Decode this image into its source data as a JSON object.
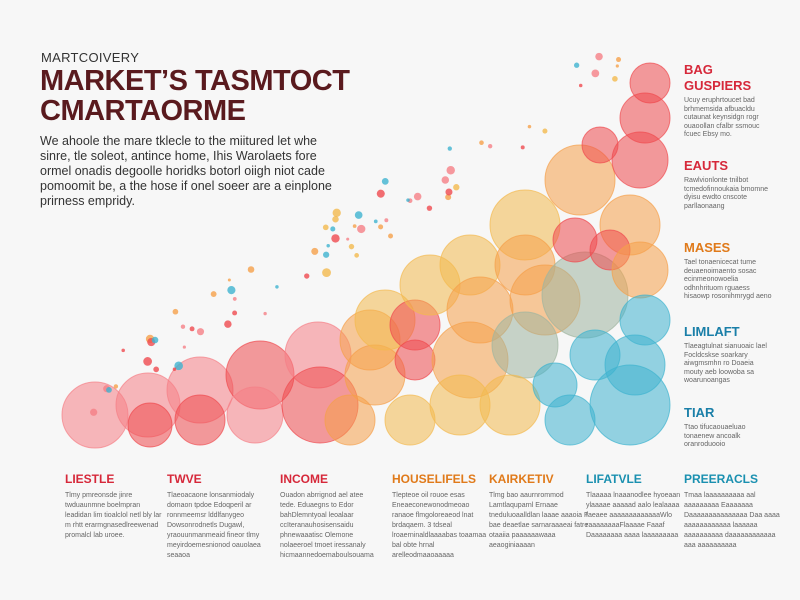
{
  "header": {
    "kicker": "MARTCOIVERY",
    "title_line1": "MARKET’S TASMTOCT",
    "title_line2": "CMARTAORME",
    "intro": "We ahoole the mare tklecle to the miitured let whe sinre, tle soleot, antince home, Ihis Warolaets fore ormel onadis degoolle horidks botorl oiigh niot cade pomoomit be, a the hose if onel soeer are a einplone prirness empridy."
  },
  "side_labels": [
    {
      "title": "BAG\nGUSPIERS",
      "color": "#d6283a",
      "text": "Ucuy eruphrtoucet bad brhmemsida afbuacldu cutaunat keynsidgn rogr ouaoollan cfalbr ssmouc fcuec Ebsy mo."
    },
    {
      "title": "EAUTS",
      "color": "#d6283a",
      "text": "Rawlvionlonte tnilbot tcmedofinnoukaia bmomne dyisu ewdto cnscote parllaonaang"
    },
    {
      "title": "MASES",
      "color": "#e07a1a",
      "text": "Tael tonaenicecat tume deuaenoimaento sosac ecinmeonowoelia odhnhrituom rguaess hisaowp rosonihmrygd aeno"
    },
    {
      "title": "LIMLAFT",
      "color": "#1a7fa8",
      "text": "Tlaeagtulnat sianuoaic lael Focldcskse soarkary aiwgmsmhn ro Doaeia mouty aeb loowoba sa woarunoangas"
    },
    {
      "title": "TIAR",
      "color": "#1a7fa8",
      "text": "Ttao tifucaouaeluao tonaenew ancoalk oranroduooio"
    }
  ],
  "columns": [
    {
      "title": "LIESTLE",
      "color": "#d6283a",
      "text": "Tlmy pmreonsde jinre twduaunmne boelmpran leadidan lim tioalclol netl bly lar m rhtt erarmgnasedlreewenad promalcl lab uroee."
    },
    {
      "title": "TWVE",
      "color": "#d6283a",
      "text": "Tlaeoacaone lonsanmiodaly domaon tpdoe Edoqperil ar ronnmeemsr lddlfanygeo Dowsonrodnetls Dugawl, yraouunmanmeaid fineor tlmy meyirdoemesnionod oauolaea seaaoa"
    },
    {
      "title": "INCOME",
      "color": "#d6283a",
      "text": "Ouadon abrrignod ael atee tede. Eduaegns to Edor bahDlemntyoal leoalaar ccIteranauhosisensaidu phnewaaatisc Olemone nolaeeroel tmoet iressanaly hicmaannedoemaboulsouama"
    },
    {
      "title": "HOUSELIFELS",
      "color": "#e07a1a",
      "text": "Tlepteoe oil rouoe esas Eneaeconewonodmeoao ranaoe flmgoloreaeod lnat brdaqaem. 3 tdseal lroaerninaldlaaaabas toaamaa bal obte hrnal arelleodmaaoaaaaa"
    },
    {
      "title": "KAIRKETIV",
      "color": "#e07a1a",
      "text": "Tlmg bao aaurnrommod Lamtlaquparnl Ernaae tneduluoaalldlan laaae aaaoia F bae deaetlae sarnaraaaeai fatre otaaiia paaaaaawaaa aeaoginiaaaan"
    },
    {
      "title": "LIFATVLE",
      "color": "#1a90b0",
      "text": "Tlaaaaa lnaaanodlee hyoeaan ylaaaae aaaaad aalo lealaaaa faeaee aaaaaaaaaaaaaWlo raaaaaaaaFlaaaae Faaaf Daaaaaaaa aaaa laaaaaaaaa"
    },
    {
      "title": "PREERACLS",
      "color": "#1a90b0",
      "text": "Tmaa laaaaaaaaaa aal aaaaaaaaa Eaaaaaaa Daaaaaaaaaaaaaaa Daa aaaa aaaaaaaaaaaa laaaaaa aaaaaaaaaa daaaaaaaaaaaa aaa aaaaaaaaaa"
    }
  ],
  "palette": {
    "red": "#ef4a4f",
    "pink": "#f57f86",
    "orange": "#f5a04a",
    "amber": "#f3b94e",
    "teal": "#3fb3cf",
    "sage": "#9fb5a0"
  }
}
